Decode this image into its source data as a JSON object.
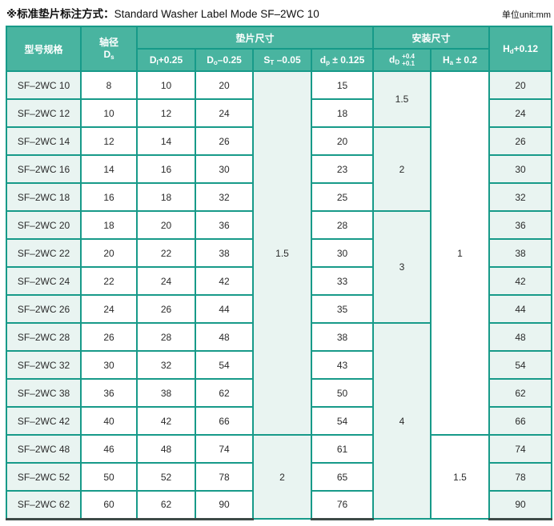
{
  "title": {
    "zh": "※标准垫片标注方式：",
    "en": "Standard Washer Label Mode SF–2WC 10"
  },
  "unit_label": "单位unit:mm",
  "colors": {
    "header_bg": "#49b4a0",
    "border": "#179a89",
    "tint_bg": "#e9f4f1",
    "bottom_border": "#3d4a47",
    "text": "#2b2b2b"
  },
  "table": {
    "header": {
      "col_model": "型号规格",
      "col_shaft": {
        "line1": "轴径",
        "base": "D",
        "sub": "s"
      },
      "group_washer": "垫片尺寸",
      "group_install": "安装尺寸",
      "col_di": {
        "base": "D",
        "sub": "I",
        "suffix": "+0.25"
      },
      "col_do": {
        "base": "D",
        "sub": "o",
        "suffix": "–0.25"
      },
      "col_st": {
        "base": "S",
        "sub": "T",
        "suffix": " –0.05"
      },
      "col_dp": {
        "base": "d",
        "sub": "p",
        "suffix": " ± 0.125"
      },
      "col_dd": {
        "base": "d",
        "sub": "D",
        "tol_top": "+0.4",
        "tol_bottom": "+0.1"
      },
      "col_ha": {
        "base": "H",
        "sub": "a",
        "suffix": " ± 0.2"
      },
      "col_hd": {
        "base": "H",
        "sub": "d",
        "suffix": "+0.12"
      }
    },
    "rows": [
      {
        "model": "SF–2WC 10",
        "ds": "8",
        "di": "10",
        "do": "20",
        "dp": "15",
        "hd": "20"
      },
      {
        "model": "SF–2WC 12",
        "ds": "10",
        "di": "12",
        "do": "24",
        "dp": "18",
        "hd": "24"
      },
      {
        "model": "SF–2WC 14",
        "ds": "12",
        "di": "14",
        "do": "26",
        "dp": "20",
        "hd": "26"
      },
      {
        "model": "SF–2WC 16",
        "ds": "14",
        "di": "16",
        "do": "30",
        "dp": "23",
        "hd": "30"
      },
      {
        "model": "SF–2WC 18",
        "ds": "16",
        "di": "18",
        "do": "32",
        "dp": "25",
        "hd": "32"
      },
      {
        "model": "SF–2WC 20",
        "ds": "18",
        "di": "20",
        "do": "36",
        "dp": "28",
        "hd": "36"
      },
      {
        "model": "SF–2WC 22",
        "ds": "20",
        "di": "22",
        "do": "38",
        "dp": "30",
        "hd": "38"
      },
      {
        "model": "SF–2WC 24",
        "ds": "22",
        "di": "24",
        "do": "42",
        "dp": "33",
        "hd": "42"
      },
      {
        "model": "SF–2WC 26",
        "ds": "24",
        "di": "26",
        "do": "44",
        "dp": "35",
        "hd": "44"
      },
      {
        "model": "SF–2WC 28",
        "ds": "26",
        "di": "28",
        "do": "48",
        "dp": "38",
        "hd": "48"
      },
      {
        "model": "SF–2WC 32",
        "ds": "30",
        "di": "32",
        "do": "54",
        "dp": "43",
        "hd": "54"
      },
      {
        "model": "SF–2WC 38",
        "ds": "36",
        "di": "38",
        "do": "62",
        "dp": "50",
        "hd": "62"
      },
      {
        "model": "SF–2WC 42",
        "ds": "40",
        "di": "42",
        "do": "66",
        "dp": "54",
        "hd": "66"
      },
      {
        "model": "SF–2WC 48",
        "ds": "46",
        "di": "48",
        "do": "74",
        "dp": "61",
        "hd": "74"
      },
      {
        "model": "SF–2WC 52",
        "ds": "50",
        "di": "52",
        "do": "78",
        "dp": "65",
        "hd": "78"
      },
      {
        "model": "SF–2WC 62",
        "ds": "60",
        "di": "62",
        "do": "90",
        "dp": "76",
        "hd": "90"
      }
    ],
    "merged": {
      "st": [
        {
          "value": "1.5",
          "start": 0,
          "span": 13
        },
        {
          "value": "2",
          "start": 13,
          "span": 3
        }
      ],
      "dd": [
        {
          "value": "1.5",
          "start": 0,
          "span": 2
        },
        {
          "value": "2",
          "start": 2,
          "span": 3
        },
        {
          "value": "3",
          "start": 5,
          "span": 4
        },
        {
          "value": "4",
          "start": 9,
          "span": 7
        }
      ],
      "ha": [
        {
          "value": "1",
          "start": 0,
          "span": 13
        },
        {
          "value": "1.5",
          "start": 13,
          "span": 3
        }
      ]
    }
  }
}
